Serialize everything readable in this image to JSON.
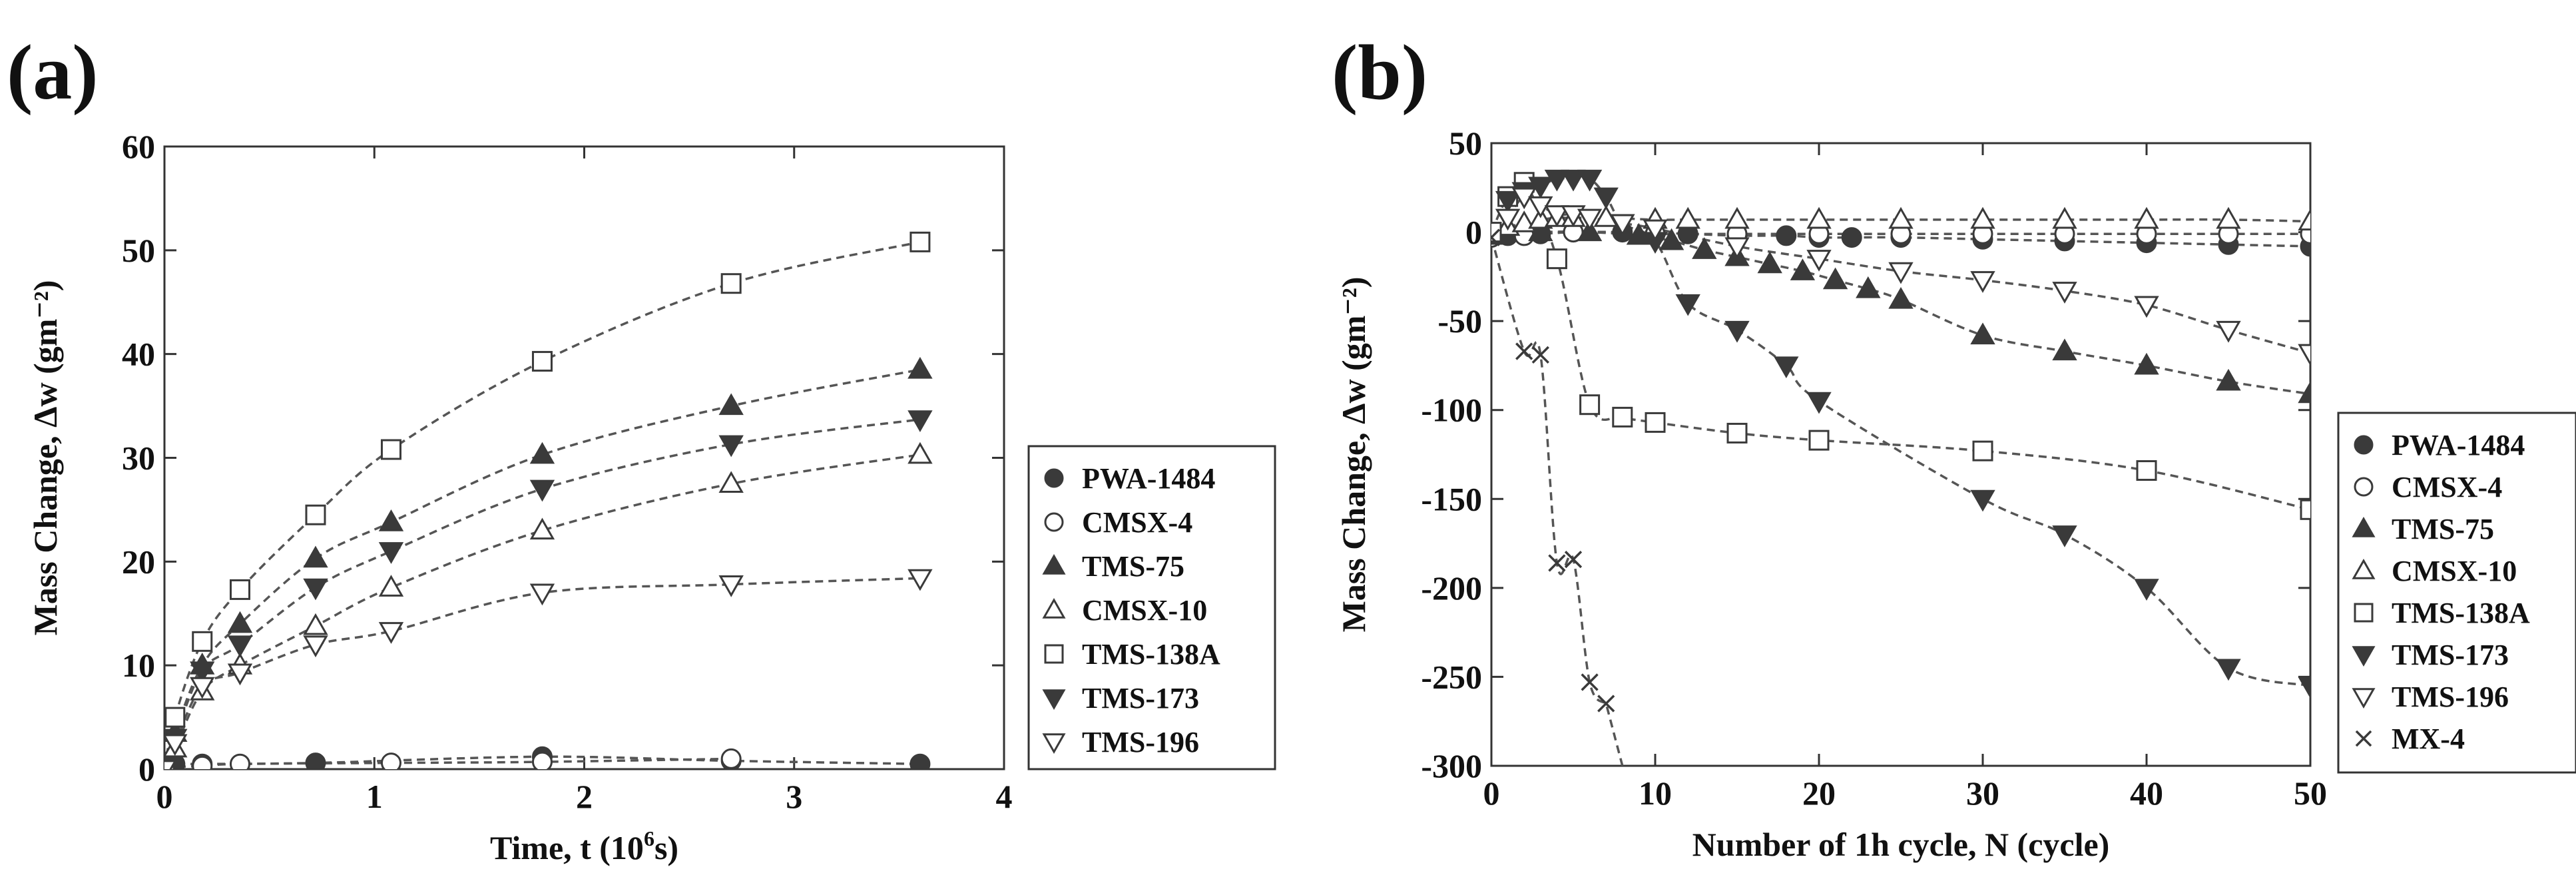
{
  "chart_data": [
    {
      "type": "scatter",
      "panel_label": "(a)",
      "xlabel": "Time, t (10",
      "xlabel_sup": "6",
      "xlabel_tail": "s)",
      "ylabel": "Mass Change, Δw (gm⁻²)",
      "xlim": [
        0,
        4
      ],
      "ylim": [
        0,
        60
      ],
      "xticks": [
        "0",
        "1",
        "2",
        "3",
        "4"
      ],
      "yticks": [
        "0",
        "10",
        "20",
        "30",
        "40",
        "50",
        "60"
      ],
      "legend_position": "right",
      "series": [
        {
          "name": "PWA-1484",
          "marker": "filled-circle",
          "x": [
            0,
            0.05,
            0.18,
            0.72,
            1.8,
            2.7,
            3.6
          ],
          "y": [
            0.2,
            0.5,
            0.5,
            0.6,
            1.2,
            0.8,
            0.5
          ]
        },
        {
          "name": "CMSX-4",
          "marker": "open-circle",
          "x": [
            0,
            0.18,
            0.36,
            1.08,
            1.8,
            2.7
          ],
          "y": [
            0.2,
            0.3,
            0.5,
            0.6,
            0.7,
            1.0
          ]
        },
        {
          "name": "TMS-75",
          "marker": "filled-triangle-up",
          "x": [
            0,
            0.05,
            0.18,
            0.36,
            0.72,
            1.08,
            1.8,
            2.7,
            3.6
          ],
          "y": [
            0,
            3.5,
            10,
            14,
            20.3,
            23.8,
            30.3,
            35,
            38.5
          ]
        },
        {
          "name": "CMSX-10",
          "marker": "open-triangle-up",
          "x": [
            0,
            0.05,
            0.18,
            0.36,
            0.72,
            1.08,
            1.8,
            2.7,
            3.6
          ],
          "y": [
            0,
            2,
            7.5,
            10,
            13.8,
            17.5,
            23,
            27.5,
            30.3
          ]
        },
        {
          "name": "TMS-138A",
          "marker": "open-square",
          "x": [
            0,
            0.05,
            0.18,
            0.36,
            0.72,
            1.08,
            1.8,
            2.7,
            3.6
          ],
          "y": [
            0,
            5,
            12.3,
            17.3,
            24.5,
            30.8,
            39.3,
            46.8,
            50.8
          ]
        },
        {
          "name": "TMS-173",
          "marker": "filled-triangle-down",
          "x": [
            0,
            0.05,
            0.18,
            0.36,
            0.72,
            1.08,
            1.8,
            2.7,
            3.6
          ],
          "y": [
            0,
            3,
            9.5,
            12,
            17.5,
            21,
            27,
            31.3,
            33.7
          ]
        },
        {
          "name": "TMS-196",
          "marker": "open-triangle-down",
          "x": [
            0,
            0.05,
            0.18,
            0.36,
            0.72,
            1.08,
            1.8,
            2.7,
            3.6
          ],
          "y": [
            0,
            2.5,
            8,
            9.3,
            12,
            13.3,
            17,
            17.8,
            18.4
          ]
        }
      ]
    },
    {
      "type": "scatter",
      "panel_label": "(b)",
      "xlabel": "Number of 1h cycle, N (cycle)",
      "ylabel": "Mass Change, Δw (gm⁻²)",
      "xlim": [
        0,
        50
      ],
      "ylim": [
        -300,
        50
      ],
      "xticks": [
        "0",
        "10",
        "20",
        "30",
        "40",
        "50"
      ],
      "yticks": [
        "50",
        "0",
        "-50",
        "-100",
        "-150",
        "-200",
        "-250",
        "-300"
      ],
      "legend_position": "right",
      "series": [
        {
          "name": "PWA-1484",
          "marker": "filled-circle",
          "x": [
            0,
            1,
            2,
            3,
            5,
            8,
            10,
            12,
            15,
            18,
            20,
            22,
            25,
            30,
            35,
            40,
            45,
            50
          ],
          "y": [
            -2,
            -2,
            -1,
            -1,
            0,
            0,
            -1,
            -1,
            -2,
            -2,
            -3,
            -3,
            -3,
            -4,
            -5,
            -6,
            -7,
            -8
          ]
        },
        {
          "name": "CMSX-4",
          "marker": "open-circle",
          "x": [
            0,
            2,
            5,
            10,
            15,
            20,
            25,
            30,
            35,
            40,
            45,
            50
          ],
          "y": [
            -3,
            -2,
            0,
            -1,
            -1,
            -1,
            -1,
            -1,
            -1,
            -1,
            -1,
            -1
          ]
        },
        {
          "name": "TMS-75",
          "marker": "filled-triangle-up",
          "x": [
            0,
            3,
            6,
            9,
            11,
            13,
            15,
            17,
            19,
            21,
            23,
            25,
            30,
            35,
            40,
            45,
            50
          ],
          "y": [
            -2,
            0,
            0,
            -2,
            -5,
            -10,
            -14,
            -18,
            -22,
            -27,
            -32,
            -38,
            -58,
            -67,
            -75,
            -84,
            -91
          ]
        },
        {
          "name": "CMSX-10",
          "marker": "open-triangle-up",
          "x": [
            1,
            2,
            3,
            4,
            5,
            7,
            10,
            12,
            15,
            20,
            25,
            30,
            35,
            40,
            45,
            50
          ],
          "y": [
            3,
            5,
            7,
            8,
            8,
            8,
            7,
            7,
            7,
            7,
            7,
            7,
            7,
            7,
            7,
            6
          ]
        },
        {
          "name": "TMS-138A",
          "marker": "open-square",
          "x": [
            0,
            1,
            2,
            4,
            6,
            8,
            10,
            15,
            20,
            30,
            40,
            50
          ],
          "y": [
            0,
            20,
            28,
            -15,
            -97,
            -104,
            -107,
            -113,
            -117,
            -123,
            -134,
            -156
          ]
        },
        {
          "name": "TMS-173",
          "marker": "filled-triangle-down",
          "x": [
            1,
            2,
            3,
            4,
            5,
            6,
            7,
            8,
            10,
            12,
            15,
            18,
            20,
            30,
            35,
            40,
            45,
            50
          ],
          "y": [
            18,
            23,
            26,
            30,
            30,
            30,
            20,
            5,
            -5,
            -40,
            -55,
            -75,
            -95,
            -150,
            -170,
            -200,
            -245,
            -255
          ]
        },
        {
          "name": "TMS-196",
          "marker": "open-triangle-down",
          "x": [
            1,
            2,
            3,
            4,
            5,
            6,
            8,
            10,
            15,
            20,
            25,
            30,
            35,
            40,
            45,
            50
          ],
          "y": [
            8,
            20,
            15,
            10,
            10,
            8,
            5,
            2,
            -8,
            -15,
            -22,
            -27,
            -33,
            -41,
            -55,
            -68
          ]
        },
        {
          "name": "MX-4",
          "marker": "cross",
          "x": [
            0,
            2,
            3,
            4,
            5,
            6,
            7
          ],
          "y": [
            -3,
            -67,
            -69,
            -186,
            -184,
            -253,
            -265
          ]
        }
      ]
    }
  ]
}
